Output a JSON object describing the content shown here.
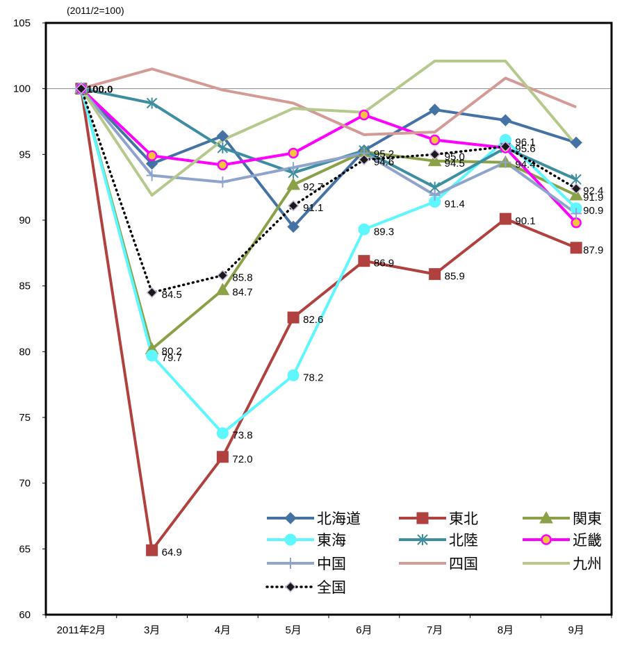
{
  "chart_data": {
    "type": "line",
    "unit_note": "(2011/2=100)",
    "ylim": [
      60,
      105
    ],
    "y_ticks": [
      60,
      65,
      70,
      75,
      80,
      85,
      90,
      95,
      100,
      105
    ],
    "categories": [
      "2011年2月",
      "3月",
      "4月",
      "5月",
      "6月",
      "7月",
      "8月",
      "9月"
    ],
    "grid": false,
    "reference_line": 100,
    "legend_placement": "bottom-right",
    "series": [
      {
        "name": "北海道",
        "color": "#4472A4",
        "marker": "diamond",
        "dashed": false,
        "values": [
          100.0,
          94.3,
          96.4,
          89.5,
          95.3,
          98.4,
          97.6,
          95.9
        ]
      },
      {
        "name": "東北",
        "color": "#B0413E",
        "marker": "square",
        "dashed": false,
        "values": [
          100.0,
          64.9,
          72.0,
          82.6,
          86.9,
          85.9,
          90.1,
          87.9
        ]
      },
      {
        "name": "関東",
        "color": "#8AA148",
        "marker": "triangle",
        "dashed": false,
        "values": [
          100.0,
          80.2,
          84.7,
          92.7,
          95.2,
          94.5,
          94.4,
          91.9
        ]
      },
      {
        "name": "東海",
        "color": "#5EF7FF",
        "marker": "circle",
        "dashed": false,
        "values": [
          100.0,
          79.7,
          73.8,
          78.2,
          89.3,
          91.4,
          96.1,
          90.9
        ]
      },
      {
        "name": "北陸",
        "color": "#3D8EA0",
        "marker": "star",
        "dashed": false,
        "values": [
          100.0,
          98.9,
          95.5,
          93.6,
          95.3,
          92.5,
          95.5,
          93.1
        ]
      },
      {
        "name": "近畿",
        "color": "#FF00FF",
        "marker": "circle-dot",
        "dashed": false,
        "values": [
          100.0,
          94.9,
          94.2,
          95.1,
          98.0,
          96.1,
          95.5,
          89.8
        ]
      },
      {
        "name": "中国",
        "color": "#8EA4CC",
        "marker": "plus",
        "dashed": false,
        "values": [
          100.0,
          93.4,
          92.9,
          94.0,
          95.1,
          91.9,
          94.4,
          90.5
        ]
      },
      {
        "name": "四国",
        "color": "#D39A96",
        "marker": "none",
        "dashed": false,
        "values": [
          100.0,
          101.5,
          99.9,
          98.9,
          96.5,
          96.7,
          100.8,
          98.6
        ]
      },
      {
        "name": "九州",
        "color": "#B6C98C",
        "marker": "none",
        "dashed": false,
        "values": [
          100.0,
          91.9,
          96.1,
          98.5,
          98.2,
          102.1,
          102.1,
          95.7
        ]
      },
      {
        "name": "全国",
        "color": "#000000",
        "marker": "diamond-dark",
        "dashed": true,
        "values": [
          100.0,
          84.5,
          85.8,
          91.1,
          94.6,
          95.0,
          95.6,
          92.4
        ]
      }
    ],
    "data_labels": [
      {
        "category": 0,
        "value": 100.0,
        "text": "100.0"
      },
      {
        "category": 1,
        "value": 84.5,
        "text": "84.5"
      },
      {
        "category": 1,
        "value": 80.2,
        "text": "80.2"
      },
      {
        "category": 1,
        "value": 79.7,
        "text": "79.7"
      },
      {
        "category": 1,
        "value": 64.9,
        "text": "64.9"
      },
      {
        "category": 2,
        "value": 85.8,
        "text": "85.8"
      },
      {
        "category": 2,
        "value": 84.7,
        "text": "84.7"
      },
      {
        "category": 2,
        "value": 73.8,
        "text": "73.8"
      },
      {
        "category": 2,
        "value": 72.0,
        "text": "72.0"
      },
      {
        "category": 3,
        "value": 92.7,
        "text": "92.7"
      },
      {
        "category": 3,
        "value": 91.1,
        "text": "91.1"
      },
      {
        "category": 3,
        "value": 82.6,
        "text": "82.6"
      },
      {
        "category": 3,
        "value": 78.2,
        "text": "78.2"
      },
      {
        "category": 4,
        "value": 95.2,
        "text": "95.2"
      },
      {
        "category": 4,
        "value": 94.6,
        "text": "94.6"
      },
      {
        "category": 4,
        "value": 89.3,
        "text": "89.3"
      },
      {
        "category": 4,
        "value": 86.9,
        "text": "86.9"
      },
      {
        "category": 5,
        "value": 95.0,
        "text": "95.0"
      },
      {
        "category": 5,
        "value": 94.5,
        "text": "94.5"
      },
      {
        "category": 5,
        "value": 91.4,
        "text": "91.4"
      },
      {
        "category": 5,
        "value": 85.9,
        "text": "85.9"
      },
      {
        "category": 6,
        "value": 96.1,
        "text": "96.1"
      },
      {
        "category": 6,
        "value": 95.6,
        "text": "95.6"
      },
      {
        "category": 6,
        "value": 94.4,
        "text": "94.4"
      },
      {
        "category": 6,
        "value": 90.1,
        "text": "90.1"
      },
      {
        "category": 7,
        "value": 92.4,
        "text": "92.4"
      },
      {
        "category": 7,
        "value": 91.9,
        "text": "91.9"
      },
      {
        "category": 7,
        "value": 90.9,
        "text": "90.9"
      },
      {
        "category": 7,
        "value": 87.9,
        "text": "87.9"
      }
    ]
  }
}
